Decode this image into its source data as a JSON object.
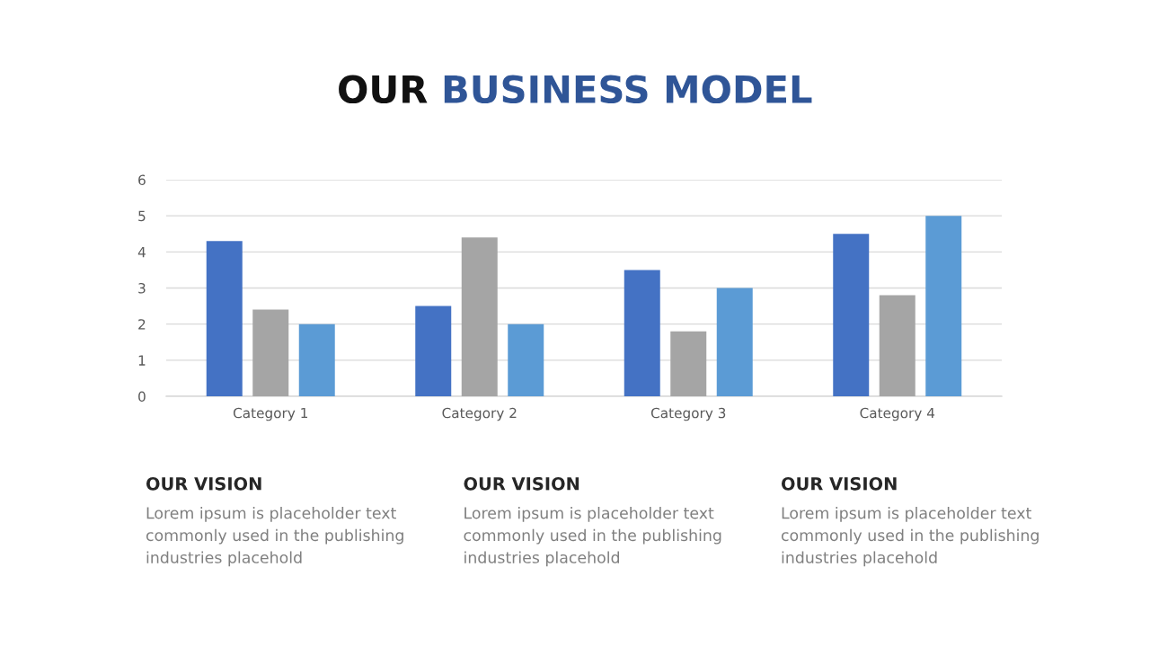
{
  "chart_data": {
    "type": "bar",
    "title": "OUR BUSINESS MODEL",
    "categories": [
      "Category 1",
      "Category 2",
      "Category 3",
      "Category 4"
    ],
    "series": [
      {
        "color": "#4472c4",
        "values": [
          4.3,
          2.5,
          3.5,
          4.5
        ]
      },
      {
        "color": "#a5a5a5",
        "values": [
          2.4,
          4.4,
          1.8,
          2.8
        ]
      },
      {
        "color": "#5b9bd5",
        "values": [
          2,
          2,
          3,
          5
        ]
      }
    ],
    "ylim": [
      0,
      6
    ],
    "yticks": [
      0,
      1,
      2,
      3,
      4,
      5,
      6
    ],
    "grid": "y",
    "annotations": [
      "OUR VISION",
      "Lorem ipsum is placeholder text\ncommonly used in the publishing\nindustries placehold",
      "OUR VISION",
      "Lorem ipsum is placeholder text\ncommonly used in the publishing\nindustries placehold",
      "OUR VISION",
      "Lorem ipsum is placeholder text\ncommonly used in the publishing\nindustries placehold"
    ]
  }
}
